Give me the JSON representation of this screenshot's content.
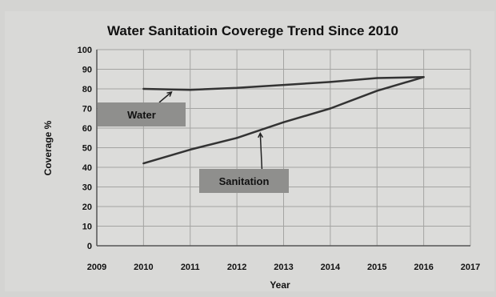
{
  "chart_data": {
    "type": "line",
    "title": "Water Sanitatioin Coverege Trend Since 2010",
    "xlabel": "Year",
    "ylabel": "Coverage %",
    "xlim": [
      2009,
      2017
    ],
    "ylim": [
      0,
      100
    ],
    "x_ticks": [
      "2009",
      "2010",
      "2011",
      "2012",
      "2013",
      "2014",
      "2015",
      "2016",
      "2017"
    ],
    "y_ticks": [
      "0",
      "10",
      "20",
      "30",
      "40",
      "50",
      "60",
      "70",
      "80",
      "90",
      "100"
    ],
    "grid": true,
    "series": [
      {
        "name": "Water",
        "color": "#333333",
        "x": [
          2010,
          2011,
          2012,
          2013,
          2014,
          2015,
          2016
        ],
        "y": [
          80,
          79.5,
          80.5,
          82,
          83.5,
          85.5,
          86
        ]
      },
      {
        "name": "Sanitation",
        "color": "#333333",
        "x": [
          2010,
          2011,
          2012,
          2013,
          2014,
          2015,
          2016
        ],
        "y": [
          42,
          49,
          55,
          63,
          70,
          79,
          86
        ]
      }
    ],
    "annotations": [
      {
        "text": "Water",
        "series": "Water",
        "point_x": 2010.6,
        "point_y": 80
      },
      {
        "text": "Sanitation",
        "series": "Sanitation",
        "point_x": 2012.5,
        "point_y": 59
      }
    ]
  }
}
